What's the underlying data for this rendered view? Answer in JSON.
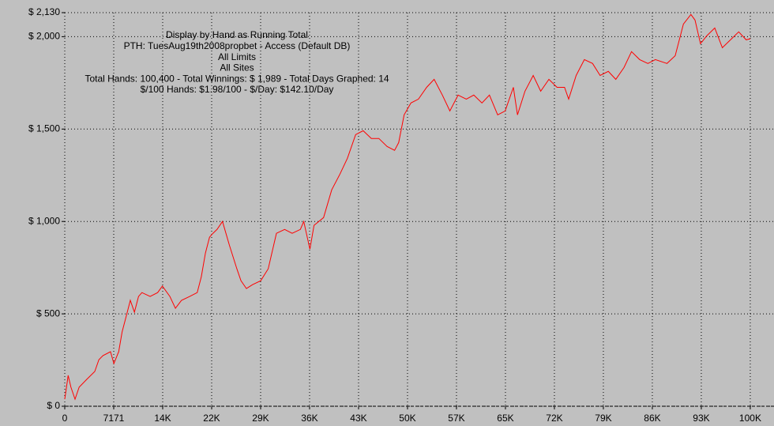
{
  "chart_data": {
    "type": "line",
    "title": "Display by Hand as Running Total",
    "annotations": [
      "PTH: TuesAug19th2008propbet - Access (Default DB)",
      "All Limits",
      "All Sites",
      "Total Hands: 100,400 - Total Winnings: $ 1,989 - Total Days Graphed: 14",
      "$/100 Hands: $1.98/100 - $/Day: $142.10/Day"
    ],
    "x": [
      0,
      500,
      900,
      1500,
      2100,
      3200,
      4400,
      5000,
      5600,
      6700,
      7200,
      7900,
      8400,
      9000,
      9600,
      10200,
      10800,
      11300,
      12500,
      13600,
      14300,
      15400,
      16200,
      17100,
      18300,
      19400,
      20000,
      20600,
      21200,
      21700,
      22300,
      23100,
      24100,
      25200,
      25800,
      26600,
      27500,
      28700,
      29800,
      31000,
      32200,
      33300,
      34500,
      35000,
      35900,
      36500,
      37900,
      39100,
      40300,
      41400,
      42600,
      43700,
      44900,
      46000,
      47200,
      48300,
      48900,
      49700,
      50700,
      51800,
      53000,
      54100,
      55300,
      56400,
      57600,
      58800,
      59900,
      61100,
      62200,
      63400,
      64500,
      65700,
      66300,
      67400,
      68600,
      69700,
      70900,
      72100,
      73200,
      73800,
      74900,
      76100,
      77300,
      78400,
      79600,
      80700,
      81900,
      83000,
      84200,
      85400,
      86500,
      88200,
      89400,
      90600,
      91700,
      92300,
      93100,
      94000,
      95200,
      96300,
      97500,
      98700,
      99800,
      100400
    ],
    "series": [
      {
        "name": "Running Total",
        "color": "#ff0000",
        "values": [
          38,
          167,
          103,
          38,
          103,
          145,
          188,
          252,
          274,
          295,
          231,
          295,
          402,
          487,
          573,
          509,
          594,
          615,
          594,
          615,
          650,
          594,
          530,
          573,
          594,
          615,
          701,
          829,
          915,
          936,
          957,
          1000,
          872,
          744,
          679,
          637,
          658,
          679,
          744,
          936,
          957,
          936,
          957,
          1000,
          850,
          979,
          1021,
          1171,
          1256,
          1342,
          1470,
          1491,
          1449,
          1449,
          1406,
          1385,
          1427,
          1577,
          1641,
          1662,
          1726,
          1769,
          1684,
          1598,
          1684,
          1662,
          1684,
          1641,
          1684,
          1577,
          1598,
          1726,
          1577,
          1705,
          1790,
          1705,
          1769,
          1726,
          1726,
          1662,
          1790,
          1876,
          1855,
          1790,
          1812,
          1769,
          1833,
          1919,
          1876,
          1855,
          1876,
          1855,
          1897,
          2068,
          2120,
          2090,
          1962,
          2004,
          2047,
          1940,
          1983,
          2026,
          1983,
          1989
        ]
      }
    ],
    "xlim": [
      0,
      100400
    ],
    "xticks": [
      0,
      7171,
      {
        "value": 14342,
        "label": "14K"
      },
      {
        "value": 21513,
        "label": "22K"
      },
      {
        "value": 28684,
        "label": "29K"
      },
      {
        "value": 35855,
        "label": "36K"
      },
      {
        "value": 43026,
        "label": "43K"
      },
      {
        "value": 50197,
        "label": "50K"
      },
      {
        "value": 57368,
        "label": "57K"
      },
      {
        "value": 64539,
        "label": "65K"
      },
      {
        "value": 71710,
        "label": "72K"
      },
      {
        "value": 78881,
        "label": "79K"
      },
      {
        "value": 86052,
        "label": "86K"
      },
      {
        "value": 93223,
        "label": "93K"
      },
      {
        "value": 100394,
        "label": "100K"
      }
    ],
    "ylim": [
      0,
      2130
    ],
    "yticks": [
      {
        "value": 0,
        "label": "$ 0"
      },
      {
        "value": 500,
        "label": "$ 500"
      },
      {
        "value": 1000,
        "label": "$ 1,000"
      },
      {
        "value": 1500,
        "label": "$ 1,500"
      },
      {
        "value": 2000,
        "label": "$ 2,000"
      },
      {
        "value": 2130,
        "label": "$ 2,130"
      }
    ],
    "grid": true
  }
}
